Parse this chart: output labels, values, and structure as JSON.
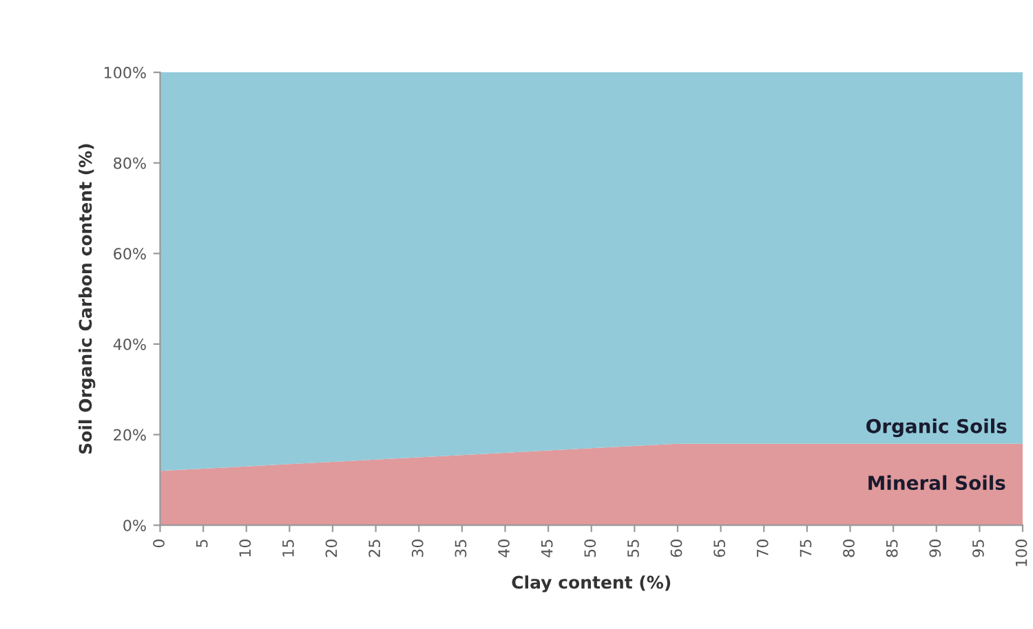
{
  "chart_data": {
    "type": "area",
    "stacked": true,
    "xlabel": "Clay content (%)",
    "ylabel": "Soil Organic Carbon content (%)",
    "categories": [
      "0",
      "5",
      "10",
      "15",
      "20",
      "25",
      "30",
      "35",
      "40",
      "45",
      "50",
      "55",
      "60",
      "65",
      "70",
      "75",
      "80",
      "85",
      "90",
      "95",
      "100"
    ],
    "series": [
      {
        "name": "Mineral Soils",
        "color": "#e09a9c",
        "values": [
          12,
          12.5,
          13,
          13.5,
          14,
          14.5,
          15,
          15.5,
          16,
          16.5,
          17,
          17.5,
          18,
          18,
          18,
          18,
          18,
          18,
          18,
          18,
          18
        ]
      },
      {
        "name": "Organic Soils",
        "color": "#92cad9",
        "values": [
          88,
          87.5,
          87,
          86.5,
          86,
          85.5,
          85,
          84.5,
          84,
          83.5,
          83,
          82.5,
          82,
          82,
          82,
          82,
          82,
          82,
          82,
          82,
          82
        ]
      }
    ],
    "ylim": [
      0,
      100
    ],
    "yticks": [
      {
        "value": 0,
        "label": "0%"
      },
      {
        "value": 20,
        "label": "20%"
      },
      {
        "value": 40,
        "label": "40%"
      },
      {
        "value": 60,
        "label": "60%"
      },
      {
        "value": 80,
        "label": "80%"
      },
      {
        "value": 100,
        "label": "100%"
      }
    ],
    "grid": false,
    "legend": false
  }
}
